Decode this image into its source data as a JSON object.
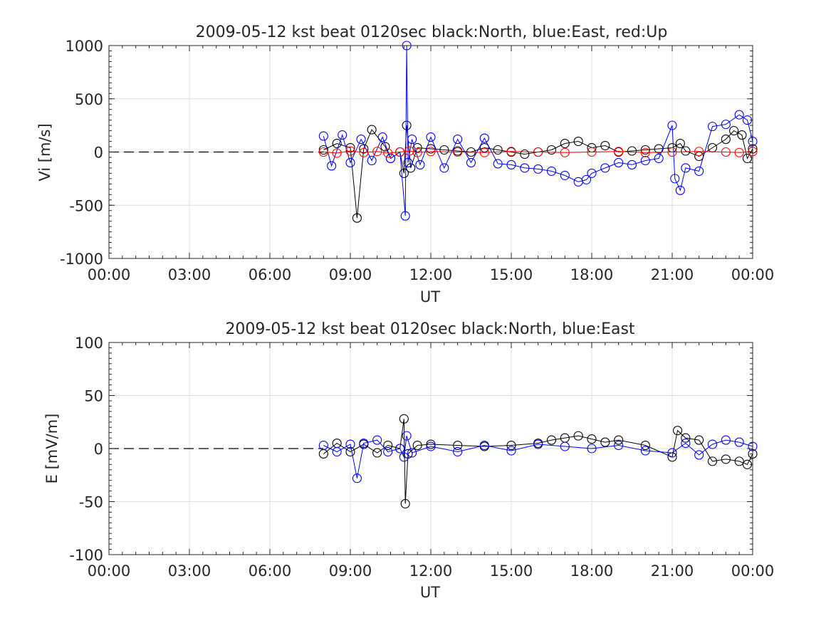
{
  "chart_data": [
    {
      "type": "scatter",
      "title": "2009-05-12 kst beat 0120sec black:North, blue:East, red:Up",
      "xlabel": "UT",
      "ylabel": "Vi [m/s]",
      "xlim": [
        0,
        24
      ],
      "ylim": [
        -1000,
        1000
      ],
      "x_ticks": [
        0,
        3,
        6,
        9,
        12,
        15,
        18,
        21,
        24
      ],
      "x_tick_labels": [
        "00:00",
        "03:00",
        "06:00",
        "09:00",
        "12:00",
        "15:00",
        "18:00",
        "21:00",
        "00:00"
      ],
      "y_ticks": [
        -1000,
        -500,
        0,
        500,
        1000
      ],
      "y_tick_labels": [
        "-1000",
        "-500",
        "0",
        "500",
        "1000"
      ],
      "grid": true,
      "reference_line": {
        "y": 0,
        "x_from": 0,
        "x_to": 8.0,
        "style": "dashed",
        "color": "#000000"
      },
      "series": [
        {
          "name": "North",
          "color": "#000000",
          "marker": "circle",
          "x": [
            8.0,
            8.5,
            9.0,
            9.25,
            9.5,
            9.8,
            10.3,
            10.5,
            10.85,
            11.0,
            11.1,
            11.25,
            11.5,
            12.0,
            12.5,
            13.0,
            13.5,
            14.0,
            14.5,
            15.0,
            15.5,
            16.0,
            16.5,
            17.0,
            17.5,
            18.0,
            18.5,
            19.0,
            19.5,
            20.0,
            20.5,
            21.0,
            21.3,
            21.5,
            22.0,
            22.5,
            23.0,
            23.3,
            23.6,
            23.8,
            24.0
          ],
          "y": [
            20,
            80,
            40,
            -620,
            30,
            210,
            50,
            -60,
            0,
            -200,
            250,
            -150,
            40,
            30,
            20,
            10,
            0,
            40,
            20,
            0,
            -20,
            0,
            20,
            80,
            100,
            40,
            60,
            0,
            10,
            20,
            30,
            40,
            80,
            10,
            -40,
            40,
            120,
            200,
            160,
            -60,
            30
          ]
        },
        {
          "name": "East",
          "color": "#0000ff",
          "marker": "circle",
          "x": [
            8.0,
            8.3,
            8.7,
            9.0,
            9.4,
            9.8,
            10.2,
            10.5,
            10.85,
            11.05,
            11.1,
            11.15,
            11.3,
            11.6,
            12.0,
            12.5,
            13.0,
            13.5,
            14.0,
            14.5,
            15.0,
            15.5,
            16.0,
            16.5,
            17.0,
            17.5,
            17.8,
            18.0,
            18.5,
            19.0,
            19.5,
            20.0,
            20.5,
            21.0,
            21.1,
            21.3,
            21.5,
            22.0,
            22.5,
            23.0,
            23.5,
            23.8,
            24.0
          ],
          "y": [
            150,
            -130,
            160,
            -100,
            120,
            -80,
            140,
            -60,
            0,
            -600,
            1000,
            -100,
            120,
            -120,
            140,
            -150,
            120,
            -100,
            130,
            -110,
            -120,
            -150,
            -160,
            -180,
            -220,
            -280,
            -260,
            -200,
            -150,
            -100,
            -120,
            -80,
            -60,
            250,
            -250,
            -360,
            -150,
            -180,
            240,
            260,
            350,
            300,
            100
          ]
        },
        {
          "name": "Up",
          "color": "#ff0000",
          "marker": "circle",
          "x": [
            8.0,
            8.5,
            9.0,
            9.5,
            10.0,
            10.4,
            10.85,
            11.2,
            11.5,
            12.0,
            13.0,
            14.0,
            15.0,
            16.0,
            17.0,
            18.0,
            19.0,
            20.0,
            21.0,
            22.0,
            23.0,
            23.5,
            24.0
          ],
          "y": [
            0,
            -10,
            10,
            -5,
            5,
            -10,
            0,
            10,
            -5,
            5,
            0,
            -5,
            5,
            0,
            -5,
            0,
            5,
            -5,
            0,
            5,
            0,
            -5,
            5
          ]
        }
      ]
    },
    {
      "type": "scatter",
      "title": "2009-05-12 kst beat 0120sec black:North, blue:East",
      "xlabel": "UT",
      "ylabel": "E [mV/m]",
      "xlim": [
        0,
        24
      ],
      "ylim": [
        -100,
        100
      ],
      "x_ticks": [
        0,
        3,
        6,
        9,
        12,
        15,
        18,
        21,
        24
      ],
      "x_tick_labels": [
        "00:00",
        "03:00",
        "06:00",
        "09:00",
        "12:00",
        "15:00",
        "18:00",
        "21:00",
        "00:00"
      ],
      "y_ticks": [
        -100,
        -50,
        0,
        50,
        100
      ],
      "y_tick_labels": [
        "-100",
        "-50",
        "0",
        "50",
        "100"
      ],
      "grid": true,
      "reference_line": {
        "y": 0,
        "x_from": 0,
        "x_to": 8.0,
        "style": "dashed",
        "color": "#000000"
      },
      "series": [
        {
          "name": "North",
          "color": "#000000",
          "marker": "circle",
          "x": [
            8.0,
            8.5,
            9.0,
            9.5,
            10.0,
            10.4,
            10.85,
            11.0,
            11.05,
            11.15,
            11.5,
            12.0,
            13.0,
            14.0,
            15.0,
            16.0,
            16.5,
            17.0,
            17.5,
            18.0,
            18.5,
            19.0,
            20.0,
            21.0,
            21.2,
            21.5,
            22.0,
            22.5,
            23.0,
            23.5,
            23.8,
            24.0
          ],
          "y": [
            -5,
            5,
            -3,
            4,
            -4,
            3,
            0,
            28,
            -52,
            -5,
            3,
            4,
            3,
            2,
            3,
            5,
            8,
            10,
            12,
            9,
            6,
            8,
            3,
            -8,
            17,
            10,
            8,
            -12,
            -10,
            -12,
            -15,
            -5
          ]
        },
        {
          "name": "East",
          "color": "#0000ff",
          "marker": "circle",
          "x": [
            8.0,
            8.5,
            9.0,
            9.25,
            9.5,
            10.0,
            10.4,
            10.85,
            11.0,
            11.1,
            11.3,
            12.0,
            13.0,
            14.0,
            15.0,
            16.0,
            17.0,
            18.0,
            19.0,
            20.0,
            21.0,
            21.5,
            22.0,
            22.5,
            23.0,
            23.5,
            24.0
          ],
          "y": [
            3,
            -3,
            4,
            -28,
            5,
            8,
            -3,
            0,
            -8,
            12,
            -4,
            2,
            -3,
            3,
            -2,
            4,
            2,
            0,
            3,
            -2,
            -4,
            5,
            -6,
            4,
            8,
            6,
            2
          ]
        }
      ]
    }
  ]
}
